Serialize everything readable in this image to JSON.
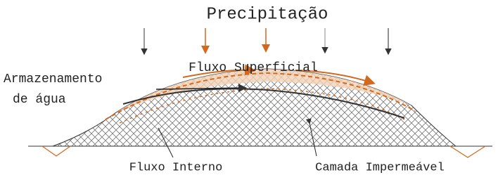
{
  "title": "Precipitação",
  "labels": {
    "surface_flow": "Fluxo Superficial",
    "storage_line1": "Armazenamento",
    "storage_line2": "de água",
    "internal_flow": "Fluxo Interno",
    "impermeable_layer": "Camada Impermeável"
  }
}
